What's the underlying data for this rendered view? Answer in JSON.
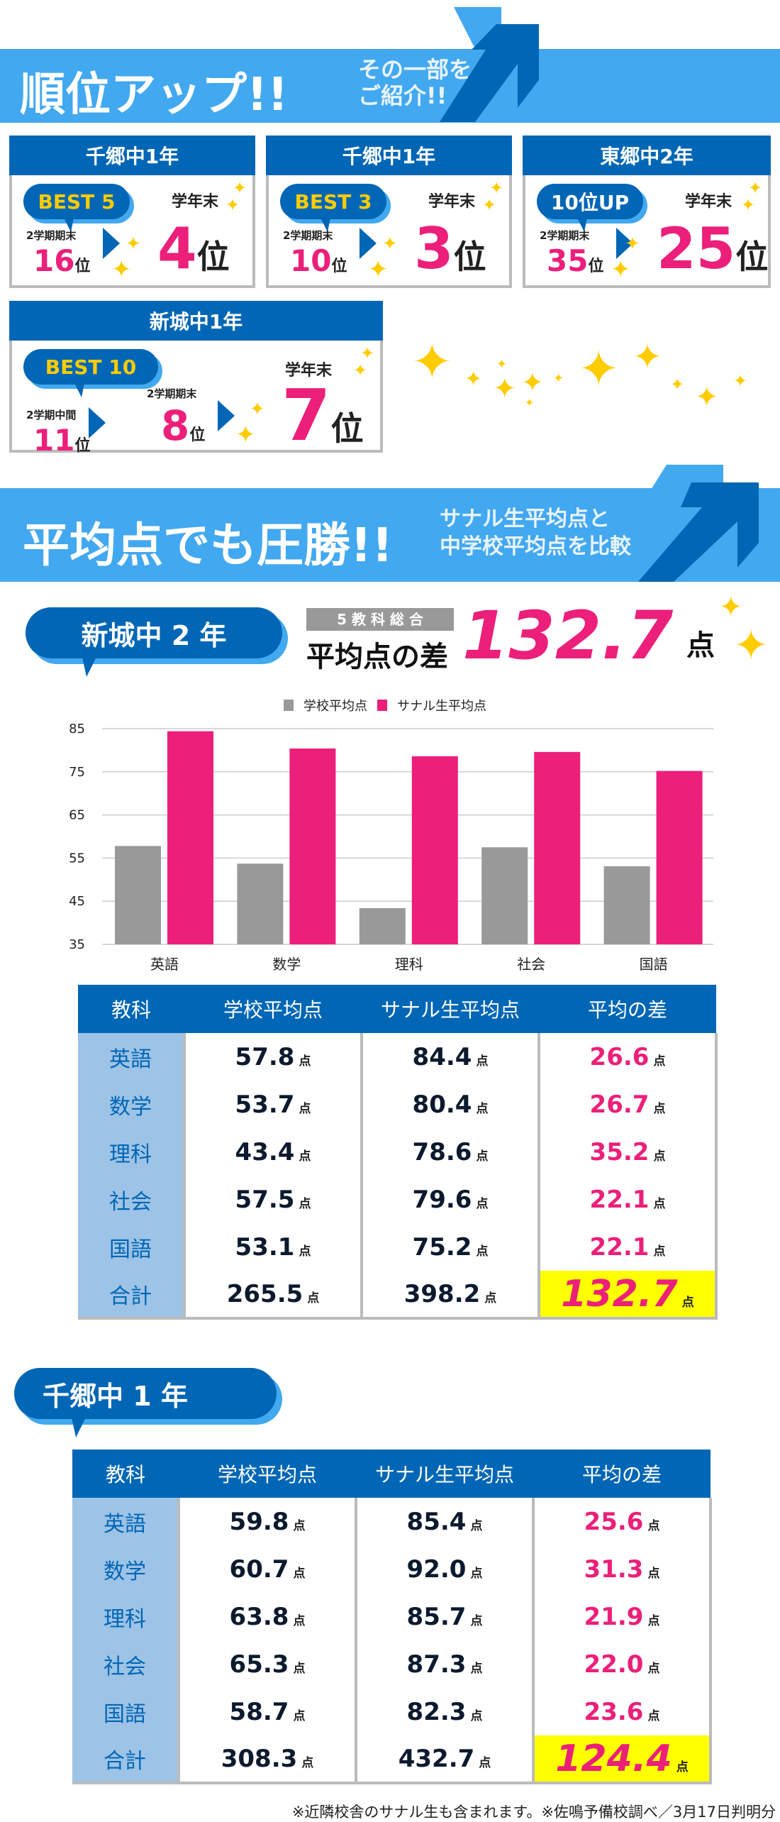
{
  "section1": {
    "title": "順位アップ!!",
    "subtitle_line1": "その一部を",
    "subtitle_line2": "ご紹介!!",
    "cards": [
      {
        "school": "千郷中1年",
        "badge": "BEST 5",
        "steps": [
          {
            "label": "2学期期末",
            "value": "16",
            "unit": "位"
          }
        ],
        "final_label": "学年末",
        "final_value": "4",
        "final_unit": "位"
      },
      {
        "school": "千郷中1年",
        "badge": "BEST 3",
        "steps": [
          {
            "label": "2学期期末",
            "value": "10",
            "unit": "位"
          }
        ],
        "final_label": "学年末",
        "final_value": "3",
        "final_unit": "位"
      },
      {
        "school": "東郷中2年",
        "badge": "10位UP",
        "steps": [
          {
            "label": "2学期期末",
            "value": "35",
            "unit": "位"
          }
        ],
        "final_label": "学年末",
        "final_value": "25",
        "final_unit": "位"
      },
      {
        "school": "新城中1年",
        "badge": "BEST 10",
        "steps": [
          {
            "label": "2学期中間",
            "value": "11",
            "unit": "位"
          },
          {
            "label": "2学期期末",
            "value": "8",
            "unit": "位"
          }
        ],
        "final_label": "学年末",
        "final_value": "7",
        "final_unit": "位"
      }
    ]
  },
  "section2": {
    "title": "平均点でも圧勝!!",
    "subtitle_line1": "サナル生平均点と",
    "subtitle_line2": "中学校平均点を比較"
  },
  "shinshiro": {
    "bubble": "新城中 2 年",
    "summary_tag": "5 教 科 総 合",
    "summary_label": "平均点の差",
    "summary_value": "132.7",
    "summary_unit": "点"
  },
  "chart_data": {
    "type": "bar",
    "categories": [
      "英語",
      "数学",
      "理科",
      "社会",
      "国語"
    ],
    "series": [
      {
        "name": "学校平均点",
        "color": "#999999",
        "values": [
          57.8,
          53.7,
          43.4,
          57.5,
          53.1
        ]
      },
      {
        "name": "サナル生平均点",
        "color": "#ec1f7a",
        "values": [
          84.4,
          80.4,
          78.6,
          79.6,
          75.2
        ]
      }
    ],
    "ylim": [
      35,
      85
    ],
    "yticks": [
      85,
      75,
      65,
      55,
      45,
      35
    ],
    "grid": true,
    "legend": "top"
  },
  "tables": [
    {
      "bubble": "",
      "headers": [
        "教科",
        "学校平均点",
        "サナル生平均点",
        "平均の差"
      ],
      "unit": "点",
      "rows": [
        [
          "英語",
          "57.8",
          "84.4",
          "26.6"
        ],
        [
          "数学",
          "53.7",
          "80.4",
          "26.7"
        ],
        [
          "理科",
          "43.4",
          "78.6",
          "35.2"
        ],
        [
          "社会",
          "57.5",
          "79.6",
          "22.1"
        ],
        [
          "国語",
          "53.1",
          "75.2",
          "22.1"
        ],
        [
          "合計",
          "265.5",
          "398.2",
          "132.7"
        ]
      ]
    },
    {
      "bubble": "千郷中 1 年",
      "headers": [
        "教科",
        "学校平均点",
        "サナル生平均点",
        "平均の差"
      ],
      "unit": "点",
      "rows": [
        [
          "英語",
          "59.8",
          "85.4",
          "25.6"
        ],
        [
          "数学",
          "60.7",
          "92.0",
          "31.3"
        ],
        [
          "理科",
          "63.8",
          "85.7",
          "21.9"
        ],
        [
          "社会",
          "65.3",
          "87.3",
          "22.0"
        ],
        [
          "国語",
          "58.7",
          "82.3",
          "23.6"
        ],
        [
          "合計",
          "308.3",
          "432.7",
          "124.4"
        ]
      ]
    }
  ],
  "footnote": "※近隣校舎のサナル生も含まれます。※佐鳴予備校調べ／3月17日判明分",
  "colors": {
    "light_blue": "#42a8f0",
    "dark_blue": "#0066b5",
    "pink": "#ec1f7a",
    "yellow": "#ffcc00",
    "highlight": "#ffff00",
    "grey": "#999999"
  }
}
